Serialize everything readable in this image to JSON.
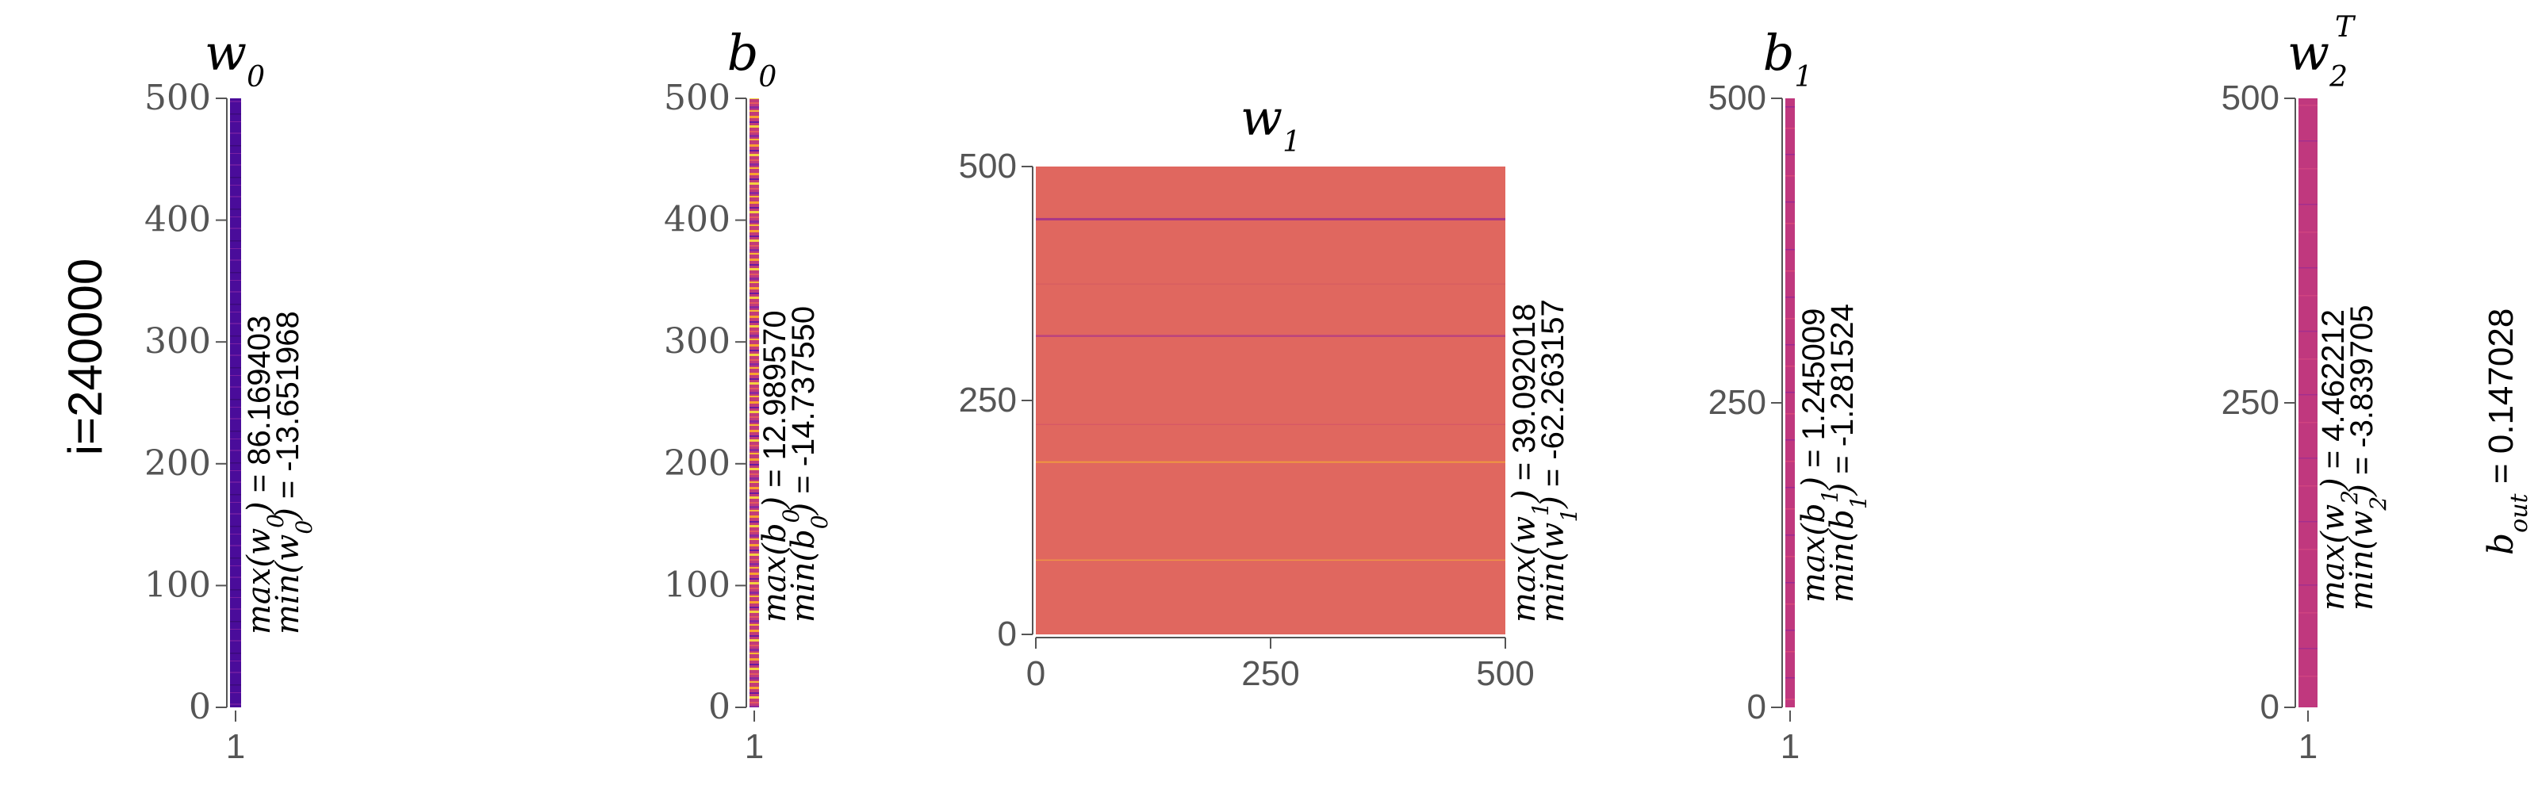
{
  "row_label": "i=240000",
  "b_out": {
    "label": "b",
    "sub": "out",
    "value_text": " = 0.147028"
  },
  "chart_data": [
    {
      "type": "heatmap",
      "title": "w",
      "title_sub": "0",
      "title_sup": "",
      "yticks": [
        "500",
        "400",
        "300",
        "200",
        "100",
        "0"
      ],
      "xticks": [
        "1"
      ],
      "ylim": [
        0,
        500
      ],
      "shape": [
        500,
        1
      ],
      "dominant_color": "#4a0c9a",
      "stat_max": {
        "fn": "max",
        "arg": "w",
        "sub": "0",
        "value": " = 86.169403"
      },
      "stat_min": {
        "fn": "min",
        "arg": "w",
        "sub": "0",
        "value": " = -13.651968"
      }
    },
    {
      "type": "heatmap",
      "title": "b",
      "title_sub": "0",
      "title_sup": "",
      "yticks": [
        "500",
        "400",
        "300",
        "200",
        "100",
        "0"
      ],
      "xticks": [
        "1"
      ],
      "ylim": [
        0,
        500
      ],
      "shape": [
        500,
        1
      ],
      "dominant_color": "#c23b7a",
      "stat_max": {
        "fn": "max",
        "arg": "b",
        "sub": "0",
        "value": " = 12.989570"
      },
      "stat_min": {
        "fn": "min",
        "arg": "b",
        "sub": "0",
        "value": " = -14.737550"
      }
    },
    {
      "type": "heatmap",
      "title": "w",
      "title_sub": "1",
      "title_sup": "",
      "yticks": [
        "500",
        "250",
        "0"
      ],
      "xticks": [
        "0",
        "250",
        "500"
      ],
      "ylim": [
        0,
        500
      ],
      "xlim": [
        0,
        500
      ],
      "shape": [
        500,
        500
      ],
      "dominant_color": "#e0675f",
      "stat_max": {
        "fn": "max",
        "arg": "w",
        "sub": "1",
        "value": " = 39.092018"
      },
      "stat_min": {
        "fn": "min",
        "arg": "w",
        "sub": "1",
        "value": " = -62.263157"
      }
    },
    {
      "type": "heatmap",
      "title": "b",
      "title_sub": "1",
      "title_sup": "",
      "yticks": [
        "500",
        "250",
        "0"
      ],
      "xticks": [
        "1"
      ],
      "ylim": [
        0,
        500
      ],
      "shape": [
        500,
        1
      ],
      "dominant_color": "#c0387e",
      "stat_max": {
        "fn": "max",
        "arg": "b",
        "sub": "1",
        "value": " = 1.245009"
      },
      "stat_min": {
        "fn": "min",
        "arg": "b",
        "sub": "1",
        "value": " = -1.281524"
      }
    },
    {
      "type": "heatmap",
      "title": "w",
      "title_sub": "2",
      "title_sup": "T",
      "yticks": [
        "500",
        "250",
        "0"
      ],
      "xticks": [
        "1"
      ],
      "ylim": [
        0,
        500
      ],
      "shape": [
        500,
        1
      ],
      "dominant_color": "#c0387e",
      "stat_max": {
        "fn": "max",
        "arg": "w",
        "sub": "2",
        "value": " = 4.462212"
      },
      "stat_min": {
        "fn": "min",
        "arg": "w",
        "sub": "2",
        "value": " = -3.839705"
      }
    }
  ]
}
